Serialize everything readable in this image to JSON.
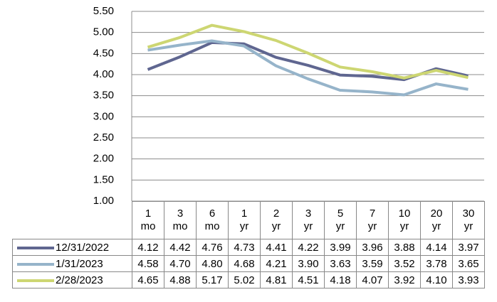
{
  "chart_data": {
    "type": "line",
    "categories": [
      "1 mo",
      "3 mo",
      "6 mo",
      "1 yr",
      "2 yr",
      "3 yr",
      "5 yr",
      "7 yr",
      "10 yr",
      "20 yr",
      "30 yr"
    ],
    "series": [
      {
        "name": "12/31/2022",
        "color": "#5f6690",
        "values": [
          4.12,
          4.42,
          4.76,
          4.73,
          4.41,
          4.22,
          3.99,
          3.96,
          3.88,
          4.14,
          3.97
        ],
        "value_labels": [
          "4.12",
          "4.42",
          "4.76",
          "4.73",
          "4.41",
          "4.22",
          "3.99",
          "3.96",
          "3.88",
          "4.14",
          "3.97"
        ]
      },
      {
        "name": "1/31/2023",
        "color": "#96b4ca",
        "values": [
          4.58,
          4.7,
          4.8,
          4.68,
          4.21,
          3.9,
          3.63,
          3.59,
          3.52,
          3.78,
          3.65
        ],
        "value_labels": [
          "4.58",
          "4.70",
          "4.80",
          "4.68",
          "4.21",
          "3.90",
          "3.63",
          "3.59",
          "3.52",
          "3.78",
          "3.65"
        ]
      },
      {
        "name": "2/28/2023",
        "color": "#cdd672",
        "values": [
          4.65,
          4.88,
          5.17,
          5.02,
          4.81,
          4.51,
          4.18,
          4.07,
          3.92,
          4.1,
          3.93
        ],
        "value_labels": [
          "4.65",
          "4.88",
          "5.17",
          "5.02",
          "4.81",
          "4.51",
          "4.18",
          "4.07",
          "3.92",
          "4.10",
          "3.93"
        ]
      }
    ],
    "ylim": [
      1,
      5.5
    ],
    "yticks": [
      {
        "value": 1,
        "label": "1.00"
      },
      {
        "value": 1.5,
        "label": "1.50"
      },
      {
        "value": 2,
        "label": "2.00"
      },
      {
        "value": 2.5,
        "label": "2.50"
      },
      {
        "value": 3,
        "label": "3.00"
      },
      {
        "value": 3.5,
        "label": "3.50"
      },
      {
        "value": 4,
        "label": "4.00"
      },
      {
        "value": 4.5,
        "label": "4.50"
      },
      {
        "value": 5,
        "label": "5.00"
      },
      {
        "value": 5.5,
        "label": "5.50"
      }
    ],
    "grid": true
  }
}
